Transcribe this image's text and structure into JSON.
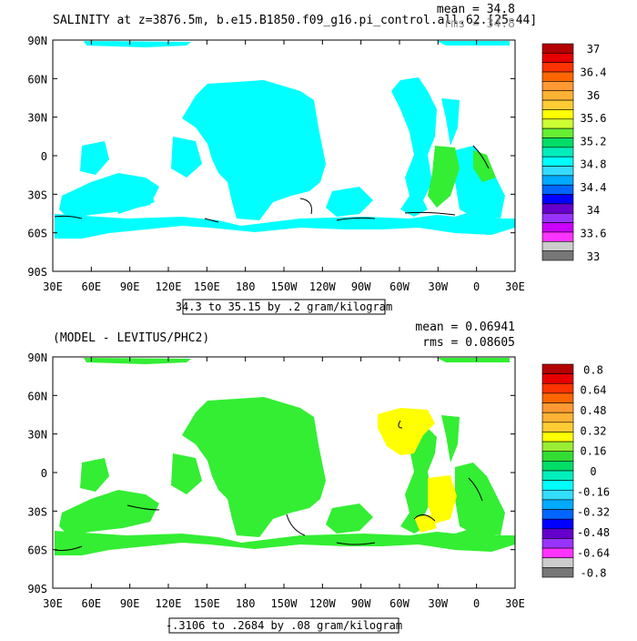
{
  "colors": {
    "ocean_bg": "#ffffff",
    "top_field": "#00ffff",
    "bottom_field_main": "#33ee33",
    "bottom_field_alt": "#ffff00"
  },
  "lon_ticks": [
    "30E",
    "60E",
    "90E",
    "120E",
    "150E",
    "180",
    "150W",
    "120W",
    "90W",
    "60W",
    "30W",
    "0",
    "30E"
  ],
  "lat_ticks": [
    "90N",
    "60N",
    "30N",
    "0",
    "30S",
    "60S",
    "90S"
  ],
  "top": {
    "title": "SALINITY at z=3876.5m, b.e15.B1850.f09_g16.pi_control.all.62.[25-44]",
    "mean": "mean = 34.8",
    "rms": "rms = 34.8",
    "contour_info": "34.3 to 35.15 by .2 gram/kilogram",
    "colorbar_labels": [
      "37",
      "36.4",
      "36",
      "35.6",
      "35.2",
      "34.8",
      "34.4",
      "34",
      "33.6",
      "33"
    ],
    "colorbar_colors": [
      "#b30000",
      "#e60000",
      "#ff3300",
      "#ff6600",
      "#ff9933",
      "#ffb233",
      "#ffcc33",
      "#ffff00",
      "#ccff33",
      "#66ee33",
      "#00dd66",
      "#00eebb",
      "#00ffff",
      "#33ddff",
      "#00aaff",
      "#0066ff",
      "#0000ff",
      "#6600cc",
      "#9933ff",
      "#cc00ff",
      "#ff33ff",
      "#cccccc",
      "#777777"
    ]
  },
  "bottom": {
    "title": "(MODEL - LEVITUS/PHC2)",
    "mean": "mean = 0.06941",
    "rms": "rms = 0.08605",
    "contour_info": "-.3106 to .2684 by .08 gram/kilogram",
    "colorbar_labels": [
      "0.8",
      "0.64",
      "0.48",
      "0.32",
      "0.16",
      "0",
      "-0.16",
      "-0.32",
      "-0.48",
      "-0.64",
      "-0.8"
    ],
    "colorbar_colors": [
      "#b30000",
      "#e60000",
      "#ff3300",
      "#ff6600",
      "#ff9933",
      "#ffb233",
      "#ffcc33",
      "#ffff00",
      "#99ee33",
      "#33dd33",
      "#00dd66",
      "#00eebb",
      "#00ffff",
      "#33ddff",
      "#00aaff",
      "#0066ff",
      "#0000ff",
      "#6600cc",
      "#9933ff",
      "#ff33ff",
      "#cccccc",
      "#777777"
    ]
  }
}
